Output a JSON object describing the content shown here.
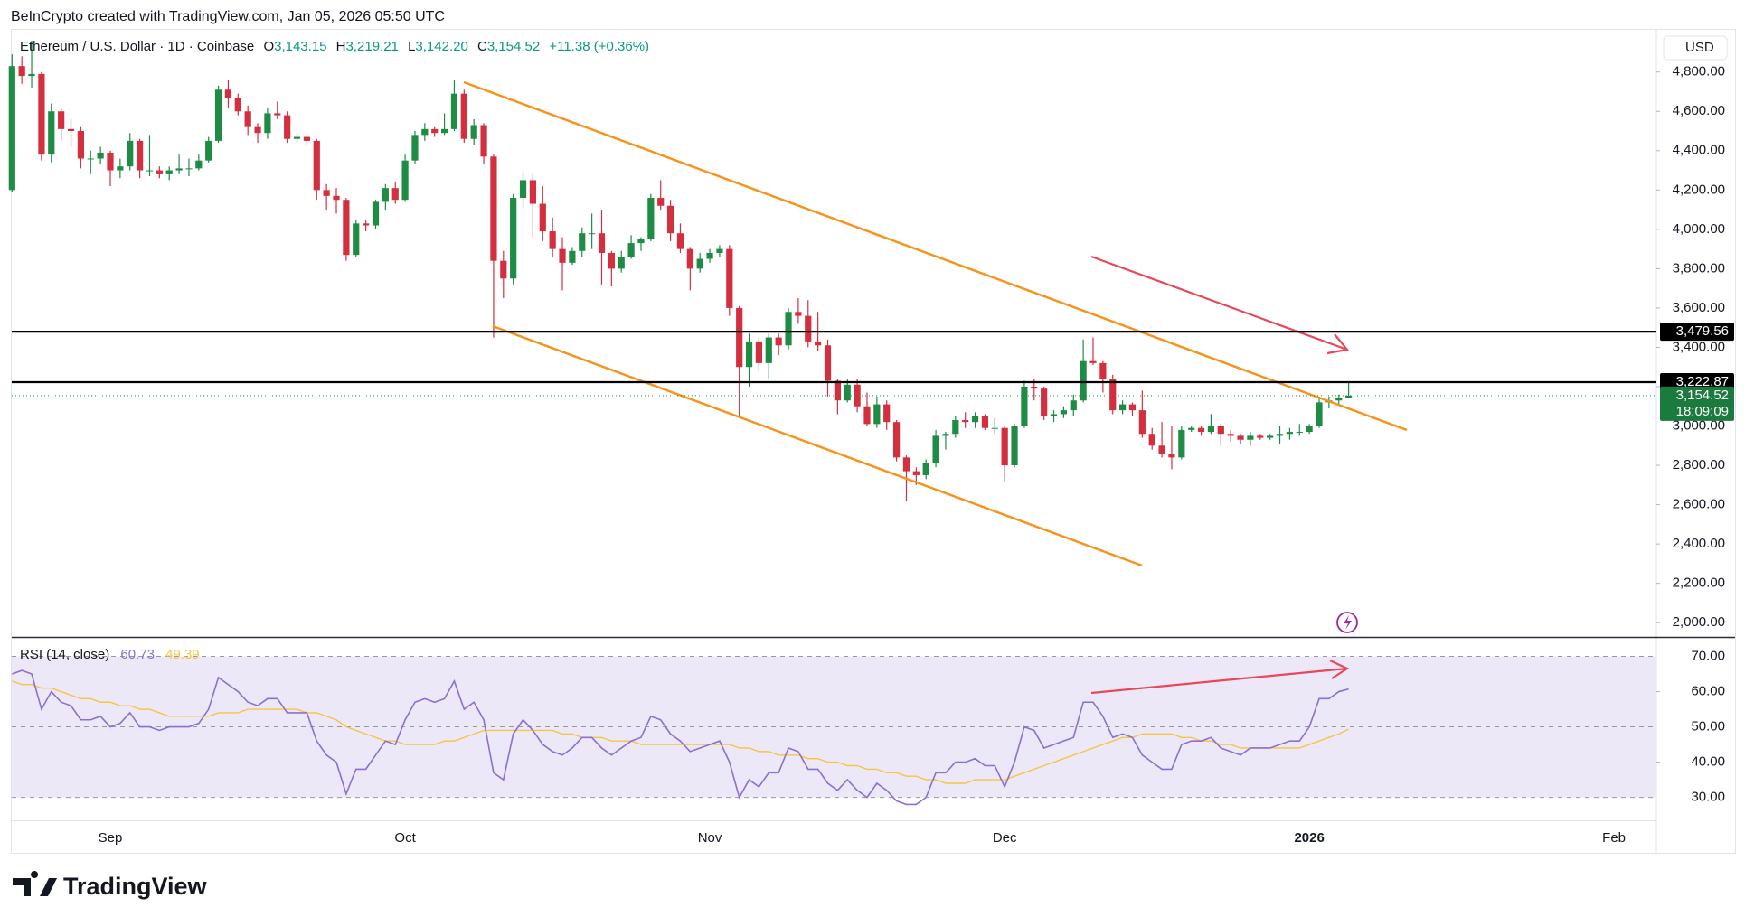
{
  "header": "BeInCrypto created with TradingView.com, Jan 05, 2026 05:50 UTC",
  "brand": "TradingView",
  "chart_data": [
    {
      "type": "candlestick",
      "title": "Ethereum / U.S. Dollar · 1D · Coinbase",
      "ohlc_letters": [
        "O",
        "H",
        "L",
        "C"
      ],
      "ohlc_values": [
        "3,143.15",
        "3,219.21",
        "3,142.20",
        "3,154.52"
      ],
      "change": "+11.38 (+0.36%)",
      "unit": "USD",
      "up_color": "#1e8c45",
      "down_color": "#d32f3f",
      "ylim": [
        1932,
        5010
      ],
      "yticks": [
        {
          "value": 2000,
          "label": "2,000.00"
        },
        {
          "value": 2200,
          "label": "2,200.00"
        },
        {
          "value": 2400,
          "label": "2,400.00"
        },
        {
          "value": 2600,
          "label": "2,600.00"
        },
        {
          "value": 2800,
          "label": "2,800.00"
        },
        {
          "value": 3000,
          "label": "3,000.00"
        },
        {
          "value": 3200,
          "label": "3,200.00"
        },
        {
          "value": 3400,
          "label": "3,400.00"
        },
        {
          "value": 3600,
          "label": "3,600.00"
        },
        {
          "value": 3800,
          "label": "3,800.00"
        },
        {
          "value": 4000,
          "label": "4,000.00"
        },
        {
          "value": 4200,
          "label": "4,200.00"
        },
        {
          "value": 4400,
          "label": "4,400.00"
        },
        {
          "value": 4600,
          "label": "4,600.00"
        },
        {
          "value": 4800,
          "label": "4,800.00"
        }
      ],
      "hlines": [
        {
          "value": 3479.56,
          "label": "3,479.56"
        },
        {
          "value": 3222.87,
          "label": "3,222.87"
        }
      ],
      "last_price": {
        "value": 3154.52,
        "label": "3,154.52",
        "countdown": "18:09:09"
      },
      "ohlc": [
        [
          4200,
          4890,
          4190,
          4830
        ],
        [
          4830,
          4880,
          4740,
          4780
        ],
        [
          4780,
          4960,
          4720,
          4790
        ],
        [
          4790,
          4800,
          4350,
          4380
        ],
        [
          4380,
          4640,
          4340,
          4600
        ],
        [
          4600,
          4620,
          4450,
          4510
        ],
        [
          4510,
          4560,
          4420,
          4500
        ],
        [
          4500,
          4520,
          4310,
          4360
        ],
        [
          4360,
          4400,
          4280,
          4360
        ],
        [
          4360,
          4420,
          4330,
          4390
        ],
        [
          4390,
          4400,
          4220,
          4300
        ],
        [
          4300,
          4360,
          4260,
          4320
        ],
        [
          4320,
          4490,
          4300,
          4450
        ],
        [
          4450,
          4460,
          4260,
          4300
        ],
        [
          4300,
          4480,
          4270,
          4300
        ],
        [
          4300,
          4320,
          4260,
          4280
        ],
        [
          4280,
          4320,
          4250,
          4300
        ],
        [
          4300,
          4380,
          4280,
          4310
        ],
        [
          4310,
          4360,
          4270,
          4310
        ],
        [
          4310,
          4380,
          4300,
          4350
        ],
        [
          4350,
          4470,
          4340,
          4450
        ],
        [
          4450,
          4730,
          4440,
          4710
        ],
        [
          4710,
          4760,
          4620,
          4670
        ],
        [
          4670,
          4690,
          4580,
          4600
        ],
        [
          4600,
          4630,
          4480,
          4520
        ],
        [
          4520,
          4540,
          4440,
          4490
        ],
        [
          4490,
          4620,
          4460,
          4590
        ],
        [
          4590,
          4650,
          4560,
          4580
        ],
        [
          4580,
          4600,
          4440,
          4460
        ],
        [
          4460,
          4490,
          4440,
          4470
        ],
        [
          4470,
          4480,
          4430,
          4450
        ],
        [
          4450,
          4460,
          4150,
          4200
        ],
        [
          4200,
          4230,
          4100,
          4170
        ],
        [
          4170,
          4210,
          4080,
          4150
        ],
        [
          4150,
          4160,
          3840,
          3870
        ],
        [
          3870,
          4050,
          3860,
          4030
        ],
        [
          4030,
          4050,
          3990,
          4020
        ],
        [
          4020,
          4150,
          4000,
          4140
        ],
        [
          4140,
          4230,
          4100,
          4210
        ],
        [
          4210,
          4240,
          4130,
          4150
        ],
        [
          4150,
          4380,
          4140,
          4350
        ],
        [
          4350,
          4500,
          4330,
          4480
        ],
        [
          4480,
          4540,
          4450,
          4510
        ],
        [
          4510,
          4520,
          4470,
          4490
        ],
        [
          4490,
          4590,
          4480,
          4510
        ],
        [
          4510,
          4760,
          4500,
          4690
        ],
        [
          4690,
          4710,
          4440,
          4460
        ],
        [
          4460,
          4560,
          4430,
          4530
        ],
        [
          4530,
          4540,
          4330,
          4370
        ],
        [
          4370,
          4380,
          3450,
          3840
        ],
        [
          3840,
          3890,
          3650,
          3750
        ],
        [
          3750,
          4180,
          3720,
          4160
        ],
        [
          4160,
          4290,
          4110,
          4250
        ],
        [
          4250,
          4280,
          3960,
          4130
        ],
        [
          4130,
          4220,
          3940,
          3990
        ],
        [
          3990,
          4060,
          3860,
          3900
        ],
        [
          3900,
          3960,
          3690,
          3830
        ],
        [
          3830,
          3910,
          3820,
          3890
        ],
        [
          3890,
          4010,
          3860,
          3980
        ],
        [
          3980,
          4080,
          3900,
          3980
        ],
        [
          3980,
          4100,
          3720,
          3880
        ],
        [
          3880,
          3890,
          3710,
          3800
        ],
        [
          3800,
          3890,
          3780,
          3860
        ],
        [
          3860,
          3970,
          3850,
          3930
        ],
        [
          3930,
          3960,
          3890,
          3950
        ],
        [
          3950,
          4180,
          3940,
          4160
        ],
        [
          4160,
          4250,
          4100,
          4120
        ],
        [
          4120,
          4150,
          3940,
          3980
        ],
        [
          3980,
          4030,
          3880,
          3900
        ],
        [
          3900,
          3910,
          3690,
          3800
        ],
        [
          3800,
          3880,
          3780,
          3850
        ],
        [
          3850,
          3900,
          3830,
          3880
        ],
        [
          3880,
          3920,
          3860,
          3900
        ],
        [
          3900,
          3920,
          3560,
          3600
        ],
        [
          3600,
          3610,
          3050,
          3300
        ],
        [
          3300,
          3470,
          3200,
          3430
        ],
        [
          3430,
          3450,
          3280,
          3320
        ],
        [
          3320,
          3470,
          3240,
          3450
        ],
        [
          3450,
          3470,
          3360,
          3410
        ],
        [
          3410,
          3600,
          3390,
          3580
        ],
        [
          3580,
          3650,
          3520,
          3560
        ],
        [
          3560,
          3640,
          3400,
          3430
        ],
        [
          3430,
          3580,
          3380,
          3410
        ],
        [
          3410,
          3440,
          3150,
          3230
        ],
        [
          3230,
          3240,
          3060,
          3130
        ],
        [
          3130,
          3240,
          3120,
          3210
        ],
        [
          3210,
          3240,
          3070,
          3100
        ],
        [
          3100,
          3170,
          3000,
          3010
        ],
        [
          3010,
          3150,
          2990,
          3110
        ],
        [
          3110,
          3130,
          2980,
          3020
        ],
        [
          3020,
          3030,
          2820,
          2840
        ],
        [
          2840,
          2850,
          2620,
          2770
        ],
        [
          2770,
          2790,
          2700,
          2750
        ],
        [
          2750,
          2830,
          2730,
          2810
        ],
        [
          2810,
          2980,
          2790,
          2950
        ],
        [
          2950,
          2970,
          2880,
          2960
        ],
        [
          2960,
          3050,
          2940,
          3030
        ],
        [
          3030,
          3070,
          2990,
          3020
        ],
        [
          3020,
          3070,
          2990,
          3050
        ],
        [
          3050,
          3060,
          2980,
          2990
        ],
        [
          2990,
          3040,
          2960,
          2990
        ],
        [
          2990,
          3000,
          2720,
          2800
        ],
        [
          2800,
          3010,
          2790,
          3000
        ],
        [
          3000,
          3230,
          2990,
          3200
        ],
        [
          3200,
          3240,
          3130,
          3190
        ],
        [
          3190,
          3200,
          3030,
          3050
        ],
        [
          3050,
          3080,
          3020,
          3060
        ],
        [
          3060,
          3100,
          3040,
          3080
        ],
        [
          3080,
          3160,
          3050,
          3130
        ],
        [
          3130,
          3440,
          3120,
          3330
        ],
        [
          3330,
          3450,
          3310,
          3320
        ],
        [
          3320,
          3330,
          3170,
          3240
        ],
        [
          3240,
          3260,
          3060,
          3080
        ],
        [
          3080,
          3130,
          3060,
          3110
        ],
        [
          3110,
          3120,
          3050,
          3080
        ],
        [
          3080,
          3180,
          2940,
          2960
        ],
        [
          2960,
          2990,
          2880,
          2900
        ],
        [
          2900,
          3020,
          2840,
          2860
        ],
        [
          2860,
          3000,
          2780,
          2840
        ],
        [
          2840,
          3000,
          2830,
          2980
        ],
        [
          2980,
          3000,
          2970,
          2990
        ],
        [
          2990,
          3000,
          2950,
          2970
        ],
        [
          2970,
          3060,
          2960,
          3000
        ],
        [
          3000,
          3010,
          2900,
          2960
        ],
        [
          2960,
          2980,
          2920,
          2950
        ],
        [
          2950,
          2960,
          2910,
          2930
        ],
        [
          2930,
          2970,
          2900,
          2950
        ],
        [
          2950,
          2960,
          2930,
          2940
        ],
        [
          2940,
          2960,
          2930,
          2950
        ],
        [
          2950,
          3000,
          2910,
          2960
        ],
        [
          2960,
          2990,
          2930,
          2970
        ],
        [
          2970,
          3010,
          2950,
          2970
        ],
        [
          2970,
          3010,
          2960,
          3000
        ],
        [
          3000,
          3140,
          2990,
          3120
        ],
        [
          3120,
          3150,
          3090,
          3130
        ],
        [
          3130,
          3160,
          3110,
          3143.15
        ],
        [
          3143.15,
          3219.21,
          3142.2,
          3154.52
        ]
      ]
    },
    {
      "type": "line",
      "title": "RSI (14, close)",
      "ylim": [
        23.75,
        75
      ],
      "yticks": [
        {
          "value": 30,
          "label": "30.00"
        },
        {
          "value": 40,
          "label": "40.00"
        },
        {
          "value": 50,
          "label": "50.00"
        },
        {
          "value": 60,
          "label": "60.00"
        },
        {
          "value": 70,
          "label": "70.00"
        }
      ],
      "band_color": "#ede8f8",
      "xticks": [
        {
          "value": 10,
          "label": "Sep"
        },
        {
          "value": 40,
          "label": "Oct"
        },
        {
          "value": 71,
          "label": "Nov"
        },
        {
          "value": 101,
          "label": "Dec"
        },
        {
          "value": 132,
          "label": "2026"
        },
        {
          "value": 163,
          "label": "Feb"
        }
      ],
      "series": [
        {
          "color": "#8d6fd1",
          "last_label": "60.73",
          "values": [
            65,
            66,
            65,
            55,
            60,
            57,
            56,
            52,
            52,
            53,
            50,
            51,
            54,
            50,
            50,
            49,
            50,
            50,
            50,
            51,
            55,
            64,
            62,
            60,
            57,
            56,
            58,
            58,
            54,
            54,
            54,
            46,
            42,
            40,
            31,
            38,
            38,
            42,
            46,
            45,
            52,
            57,
            58,
            57,
            58,
            63,
            55,
            57,
            52,
            37,
            35,
            48,
            52,
            49,
            45,
            43,
            42,
            44,
            47,
            47,
            44,
            42,
            44,
            46,
            47,
            53,
            52,
            48,
            46,
            43,
            44,
            45,
            46,
            40,
            30,
            35,
            33,
            37,
            37,
            44,
            43,
            38,
            38,
            34,
            32,
            35,
            32,
            30,
            34,
            32,
            29,
            28,
            28,
            30,
            37,
            37,
            40,
            40,
            41,
            39,
            39,
            33,
            40,
            50,
            49,
            44,
            45,
            46,
            47,
            57,
            57,
            53,
            47,
            48,
            47,
            42,
            40,
            38,
            38,
            45,
            46,
            46,
            47,
            44,
            43,
            42,
            44,
            44,
            44,
            45,
            46,
            46,
            50,
            58,
            58,
            60,
            60.73
          ]
        },
        {
          "color": "#f5c542",
          "last_label": "49.39",
          "values": [
            63,
            62,
            62,
            61,
            61,
            60,
            59,
            58,
            58,
            57,
            57,
            56,
            56,
            55,
            55,
            54,
            53,
            53,
            53,
            53,
            53,
            54,
            54,
            54,
            55,
            55,
            55,
            55,
            55,
            55,
            54,
            54,
            53,
            52,
            50,
            49,
            48,
            47,
            46,
            46,
            45,
            45,
            45,
            45,
            46,
            46,
            47,
            48,
            49,
            49,
            49,
            49,
            49,
            49,
            49,
            49,
            48,
            48,
            47,
            47,
            47,
            46,
            46,
            46,
            45,
            45,
            45,
            45,
            45,
            45,
            45,
            45,
            45,
            45,
            44,
            44,
            43,
            43,
            42,
            42,
            42,
            41,
            41,
            40,
            40,
            39,
            39,
            38,
            38,
            37,
            37,
            36,
            36,
            35,
            35,
            34,
            34,
            34,
            35,
            35,
            35,
            35,
            36,
            37,
            38,
            39,
            40,
            41,
            42,
            43,
            44,
            45,
            46,
            47,
            47,
            48,
            48,
            48,
            48,
            47,
            47,
            46,
            46,
            45,
            45,
            44,
            44,
            44,
            44,
            44,
            44,
            44,
            45,
            46,
            47,
            48,
            49.39
          ]
        }
      ]
    }
  ]
}
